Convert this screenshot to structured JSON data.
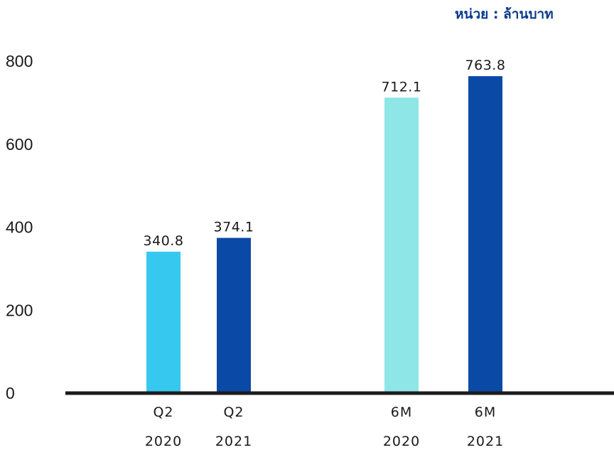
{
  "chart_data": {
    "type": "bar",
    "unit_label": "หน่วย : ล้านบาท",
    "unit_color": "#0b3a8c",
    "yticks": [
      0,
      200,
      400,
      600,
      800
    ],
    "ylim": [
      0,
      800
    ],
    "bars": [
      {
        "label_line1": "Q2",
        "label_line2": "2020",
        "value": 340.8,
        "value_label": "340.8",
        "color": "#36c8ef"
      },
      {
        "label_line1": "Q2",
        "label_line2": "2021",
        "value": 374.1,
        "value_label": "374.1",
        "color": "#0a4aa6"
      },
      {
        "label_line1": "6M",
        "label_line2": "2020",
        "value": 712.1,
        "value_label": "712.1",
        "color": "#8ee6e6"
      },
      {
        "label_line1": "6M",
        "label_line2": "2021",
        "value": 763.8,
        "value_label": "763.8",
        "color": "#0a4aa6"
      }
    ],
    "grid": false,
    "legend": "none"
  }
}
